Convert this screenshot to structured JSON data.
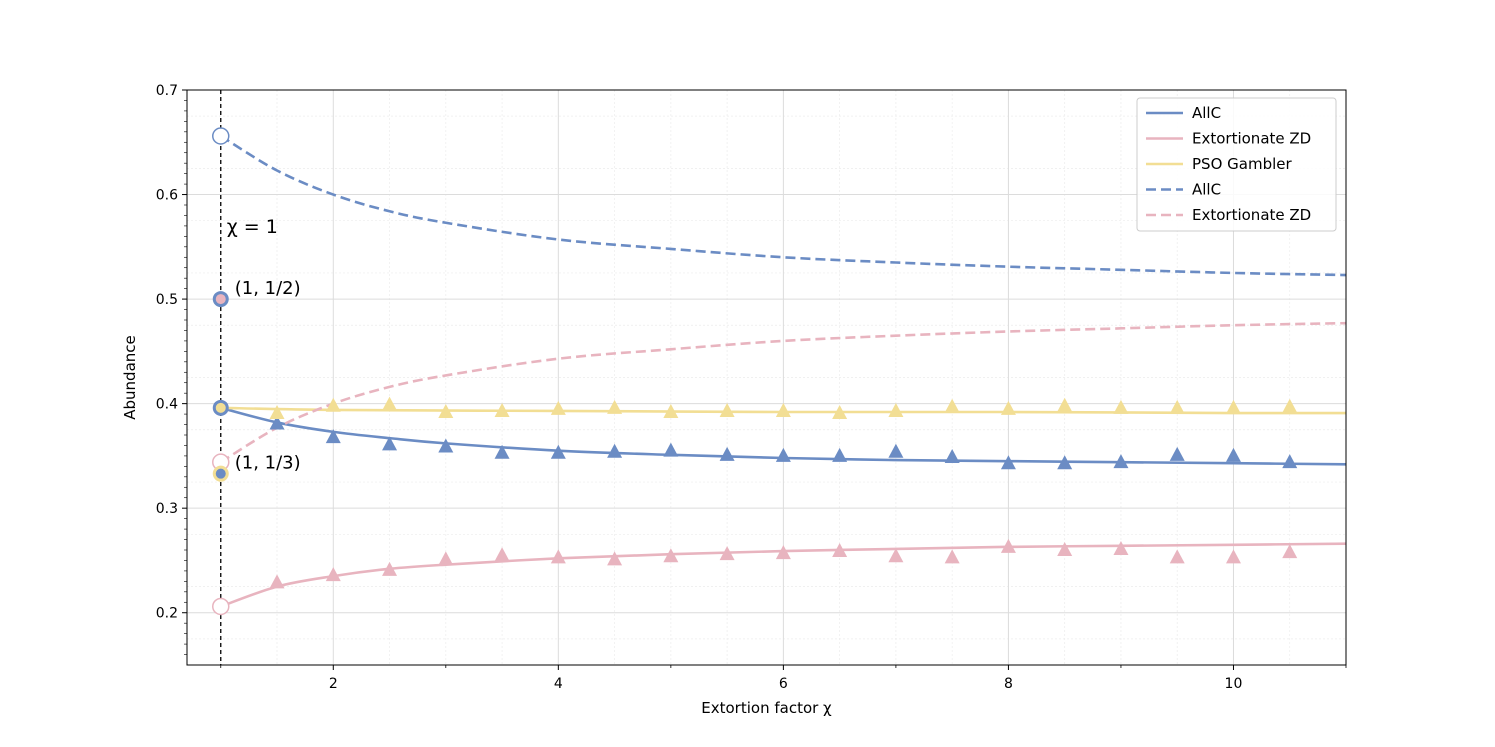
{
  "chart_data": {
    "type": "line",
    "xlabel": "Extortion factor χ",
    "ylabel": "Abundance",
    "xlim": [
      0.7,
      11.0
    ],
    "ylim": [
      0.15,
      0.7
    ],
    "xticks": [
      2,
      4,
      6,
      8,
      10
    ],
    "xtick_labels": [
      "2",
      "4",
      "6",
      "8",
      "10"
    ],
    "yticks": [
      0.2,
      0.3,
      0.4,
      0.5,
      0.6,
      0.7
    ],
    "ytick_labels": [
      "0.2",
      "0.3",
      "0.4",
      "0.5",
      "0.6",
      "0.7"
    ],
    "grid": true,
    "legend_position": "top-right",
    "colors": {
      "allc": "#6b8cc4",
      "zd": "#e8b4bf",
      "pso": "#f2de94"
    },
    "legend": [
      {
        "label": "AllC",
        "style": "solid",
        "color": "#6b8cc4"
      },
      {
        "label": "Extortionate ZD",
        "style": "solid",
        "color": "#e8b4bf"
      },
      {
        "label": "PSO Gambler",
        "style": "solid",
        "color": "#f2de94"
      },
      {
        "label": "AllC",
        "style": "dashed",
        "color": "#6b8cc4"
      },
      {
        "label": "Extortionate ZD",
        "style": "dashed",
        "color": "#e8b4bf"
      }
    ],
    "series": [
      {
        "style": "solid",
        "color": "#6b8cc4",
        "x": [
          1,
          1.5,
          2,
          2.5,
          3,
          4,
          5,
          6,
          7,
          8,
          9,
          10,
          11
        ],
        "y": [
          0.396,
          0.382,
          0.373,
          0.367,
          0.362,
          0.355,
          0.351,
          0.348,
          0.346,
          0.345,
          0.344,
          0.343,
          0.342
        ]
      },
      {
        "style": "solid",
        "color": "#e8b4bf",
        "x": [
          1,
          1.5,
          2,
          2.5,
          3,
          4,
          5,
          6,
          7,
          8,
          9,
          10,
          11
        ],
        "y": [
          0.206,
          0.225,
          0.235,
          0.242,
          0.246,
          0.252,
          0.256,
          0.259,
          0.261,
          0.263,
          0.264,
          0.265,
          0.266
        ]
      },
      {
        "style": "solid",
        "color": "#f2de94",
        "x": [
          1,
          2,
          4,
          6,
          8,
          10,
          11
        ],
        "y": [
          0.396,
          0.394,
          0.393,
          0.392,
          0.392,
          0.391,
          0.391
        ]
      },
      {
        "style": "dashed",
        "color": "#6b8cc4",
        "x": [
          1,
          1.5,
          2,
          2.5,
          3,
          4,
          5,
          6,
          7,
          8,
          9,
          10,
          11
        ],
        "y": [
          0.656,
          0.623,
          0.6,
          0.584,
          0.573,
          0.557,
          0.548,
          0.54,
          0.535,
          0.531,
          0.528,
          0.525,
          0.523
        ]
      },
      {
        "style": "dashed",
        "color": "#e8b4bf",
        "x": [
          1,
          1.5,
          2,
          2.5,
          3,
          4,
          5,
          6,
          7,
          8,
          9,
          10,
          11
        ],
        "y": [
          0.344,
          0.377,
          0.4,
          0.416,
          0.427,
          0.443,
          0.452,
          0.46,
          0.465,
          0.469,
          0.472,
          0.475,
          0.477
        ]
      }
    ],
    "scatter": [
      {
        "color": "#6b8cc4",
        "x": [
          1.5,
          2,
          2.5,
          3,
          3.5,
          4,
          4.5,
          5,
          5.5,
          6,
          6.5,
          7,
          7.5,
          8,
          8.5,
          9,
          9.5,
          10,
          10.5
        ],
        "y": [
          0.381,
          0.368,
          0.361,
          0.359,
          0.353,
          0.353,
          0.354,
          0.355,
          0.351,
          0.35,
          0.35,
          0.354,
          0.349,
          0.343,
          0.343,
          0.344,
          0.351,
          0.35,
          0.344
        ]
      },
      {
        "color": "#e8b4bf",
        "x": [
          1.5,
          2,
          2.5,
          3,
          3.5,
          4,
          4.5,
          5,
          5.5,
          6,
          6.5,
          7,
          7.5,
          8,
          8.5,
          9,
          9.5,
          10,
          10.5
        ],
        "y": [
          0.229,
          0.236,
          0.241,
          0.251,
          0.255,
          0.253,
          0.251,
          0.254,
          0.256,
          0.257,
          0.259,
          0.254,
          0.253,
          0.263,
          0.26,
          0.261,
          0.253,
          0.253,
          0.258
        ]
      },
      {
        "color": "#f2de94",
        "x": [
          1.5,
          2,
          2.5,
          3,
          3.5,
          4,
          4.5,
          5,
          5.5,
          6,
          6.5,
          7,
          7.5,
          8,
          8.5,
          9,
          9.5,
          10,
          10.5
        ],
        "y": [
          0.391,
          0.398,
          0.399,
          0.392,
          0.393,
          0.395,
          0.396,
          0.392,
          0.393,
          0.393,
          0.391,
          0.393,
          0.397,
          0.395,
          0.398,
          0.396,
          0.396,
          0.396,
          0.397
        ]
      }
    ],
    "chi_one_line": {
      "x": 1,
      "label": "χ = 1"
    },
    "points": [
      {
        "x": 1,
        "y": 0.656,
        "fill": "#ffffff",
        "stroke": "#6b8cc4"
      },
      {
        "x": 1,
        "y": 0.5,
        "fill": "#e8b4bf",
        "stroke": "#6b8cc4"
      },
      {
        "x": 1,
        "y": 0.396,
        "fill": "#f2de94",
        "stroke": "#6b8cc4"
      },
      {
        "x": 1,
        "y": 0.344,
        "fill": "#ffffff",
        "stroke": "#e8b4bf"
      },
      {
        "x": 1,
        "y": 0.333,
        "fill": "#6b8cc4",
        "stroke": "#f2de94"
      },
      {
        "x": 1,
        "y": 0.206,
        "fill": "#ffffff",
        "stroke": "#e8b4bf"
      }
    ],
    "annotations": [
      {
        "text": "(1, 1/2)",
        "x": 1,
        "y": 0.5
      },
      {
        "text": "(1, 1/3)",
        "x": 1,
        "y": 0.333
      }
    ]
  }
}
